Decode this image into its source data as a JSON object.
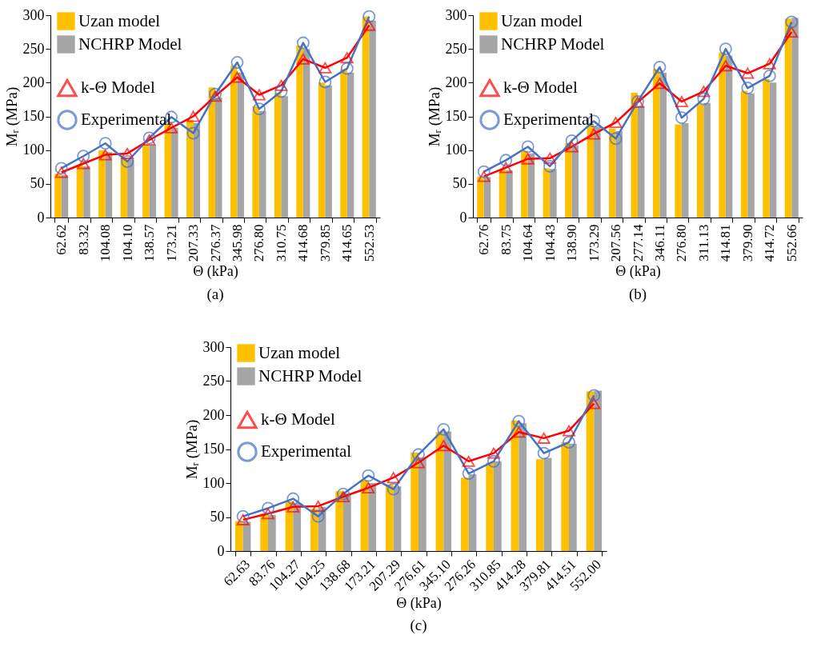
{
  "chart_data": [
    {
      "type": "bar",
      "xlabel": "Θ (kPa)",
      "ylabel": "Mᵣ (MPa)",
      "annotations": [
        "(a)"
      ],
      "categories": [
        "62.62",
        "83.32",
        "104.08",
        "104.10",
        "138.57",
        "173.21",
        "207.33",
        "276.37",
        "345.98",
        "276.80",
        "310.75",
        "414.68",
        "379.85",
        "414.65",
        "552.53"
      ],
      "ylim": [
        0,
        300
      ],
      "yticks": [
        0,
        50,
        100,
        150,
        200,
        250,
        300
      ],
      "grid": false,
      "legend": "top left",
      "series": [
        {
          "name": "Uzan model",
          "color": "#ffc000",
          "values": [
            65,
            78,
            100,
            88,
            108,
            140,
            145,
            193,
            225,
            165,
            185,
            255,
            200,
            220,
            298
          ]
        },
        {
          "name": "NCHRP Model",
          "color": "#a5a5a5",
          "values": [
            63,
            76,
            97,
            86,
            107,
            133,
            140,
            178,
            215,
            158,
            180,
            250,
            196,
            215,
            292
          ]
        },
        {
          "name": "k-Θ Model",
          "type": "line",
          "color": "#ff0000",
          "marker": "triangle",
          "values": [
            67,
            80,
            93,
            95,
            115,
            133,
            150,
            180,
            208,
            182,
            196,
            235,
            222,
            237,
            285
          ]
        },
        {
          "name": "Experimental",
          "type": "line",
          "color": "#4472c4",
          "marker": "circle",
          "values": [
            73,
            91,
            110,
            83,
            118,
            149,
            125,
            183,
            230,
            161,
            187,
            259,
            201,
            221,
            298
          ]
        }
      ]
    },
    {
      "type": "bar",
      "xlabel": "Θ (kPa)",
      "ylabel": "Mᵣ (MPa)",
      "annotations": [
        "(b)"
      ],
      "categories": [
        "62.76",
        "83.75",
        "104.64",
        "104.43",
        "138.90",
        "173.29",
        "207.56",
        "277.14",
        "346.11",
        "276.80",
        "311.13",
        "414.81",
        "379.90",
        "414.72",
        "552.66"
      ],
      "ylim": [
        0,
        300
      ],
      "yticks": [
        0,
        50,
        100,
        150,
        200,
        250,
        300
      ],
      "grid": false,
      "legend": "top left",
      "series": [
        {
          "name": "Uzan model",
          "color": "#ffc000",
          "values": [
            61,
            72,
            99,
            73,
            110,
            138,
            132,
            185,
            220,
            138,
            168,
            245,
            188,
            205,
            295
          ]
        },
        {
          "name": "NCHRP Model",
          "color": "#a5a5a5",
          "values": [
            60,
            70,
            95,
            72,
            107,
            135,
            128,
            165,
            215,
            140,
            170,
            240,
            184,
            200,
            296
          ]
        },
        {
          "name": "k-Θ Model",
          "type": "line",
          "color": "#ff0000",
          "marker": "triangle",
          "values": [
            61,
            74,
            87,
            88,
            105,
            124,
            141,
            171,
            199,
            172,
            187,
            225,
            214,
            228,
            275
          ]
        },
        {
          "name": "Experimental",
          "type": "line",
          "color": "#4472c4",
          "marker": "circle",
          "values": [
            68,
            85,
            105,
            76,
            114,
            143,
            117,
            172,
            223,
            148,
            176,
            250,
            192,
            210,
            290
          ]
        }
      ]
    },
    {
      "type": "bar",
      "xlabel": "Θ (kPa)",
      "ylabel": "Mᵣ (MPa)",
      "annotations": [
        "(c)"
      ],
      "categories": [
        "62.63",
        "83.76",
        "104.27",
        "104.25",
        "138.68",
        "173.21",
        "207.29",
        "276.61",
        "345.10",
        "276.26",
        "310.85",
        "414.28",
        "379.81",
        "414.51",
        "552.00"
      ],
      "ylim": [
        0,
        300
      ],
      "yticks": [
        0,
        50,
        100,
        150,
        200,
        250,
        300
      ],
      "grid": false,
      "legend": "top left",
      "series": [
        {
          "name": "Uzan model",
          "color": "#ffc000",
          "values": [
            44,
            55,
            73,
            62,
            88,
            104,
            98,
            145,
            175,
            108,
            130,
            192,
            135,
            160,
            235
          ]
        },
        {
          "name": "NCHRP Model",
          "color": "#a5a5a5",
          "values": [
            43,
            53,
            70,
            65,
            85,
            100,
            95,
            138,
            176,
            113,
            132,
            188,
            137,
            158,
            236
          ]
        },
        {
          "name": "k-Θ Model",
          "type": "line",
          "color": "#ff0000",
          "marker": "triangle",
          "values": [
            46,
            55,
            65,
            66,
            80,
            93,
            108,
            130,
            155,
            132,
            144,
            175,
            166,
            177,
            217
          ]
        },
        {
          "name": "Experimental",
          "type": "line",
          "color": "#4472c4",
          "marker": "circle",
          "values": [
            51,
            63,
            77,
            51,
            84,
            111,
            91,
            142,
            179,
            114,
            132,
            191,
            144,
            160,
            229
          ]
        }
      ]
    }
  ]
}
